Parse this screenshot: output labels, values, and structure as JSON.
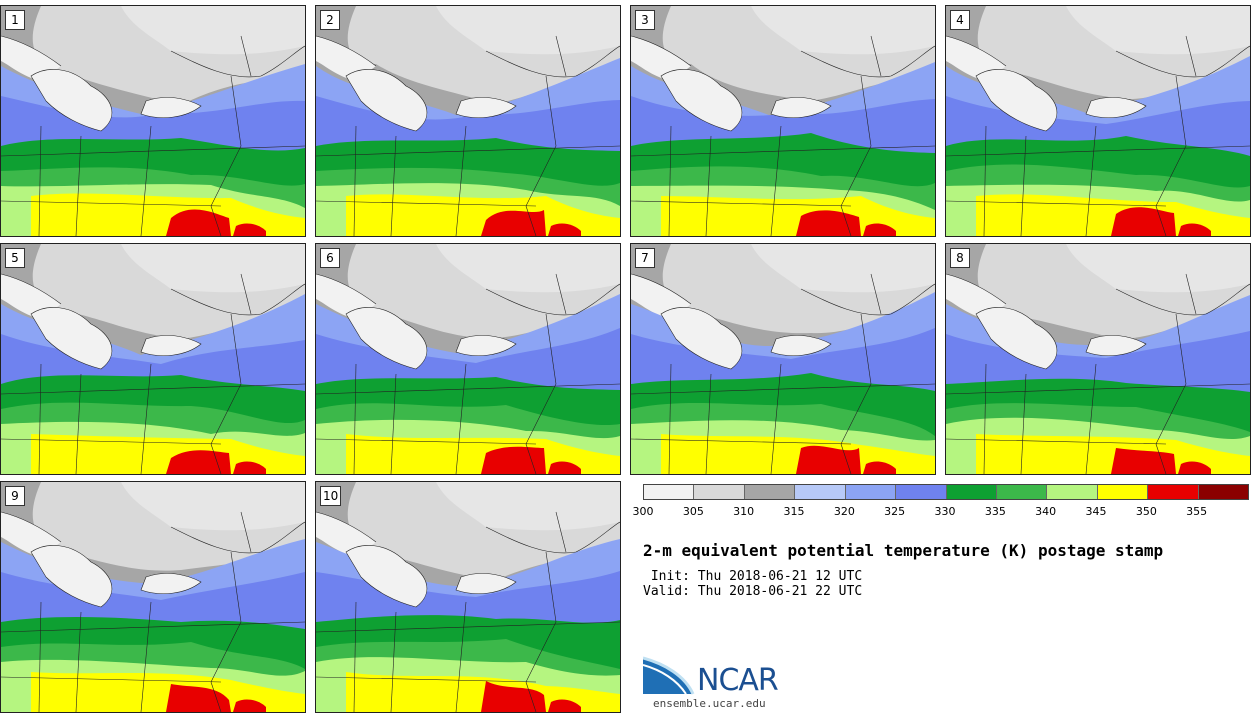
{
  "panels": [
    {
      "label": "1"
    },
    {
      "label": "2"
    },
    {
      "label": "3"
    },
    {
      "label": "4"
    },
    {
      "label": "5"
    },
    {
      "label": "6"
    },
    {
      "label": "7"
    },
    {
      "label": "8"
    },
    {
      "label": "9"
    },
    {
      "label": "10"
    }
  ],
  "colorbar": {
    "colors": [
      "#f2f2f2",
      "#d9d9d9",
      "#a6a6a6",
      "#b7c9f7",
      "#8ca4f4",
      "#6f82ef",
      "#0ea032",
      "#3cb84a",
      "#b5f580",
      "#ffff00",
      "#e80000",
      "#8b0000"
    ],
    "ticks": [
      "300",
      "305",
      "310",
      "315",
      "320",
      "325",
      "330",
      "335",
      "340",
      "345",
      "350",
      "355"
    ]
  },
  "title": "2-m equivalent potential temperature (K) postage stamp",
  "init": " Init: Thu 2018-06-21 12 UTC",
  "valid": "Valid: Thu 2018-06-21 22 UTC",
  "logo": {
    "text": "NCAR",
    "url": "ensemble.ucar.edu"
  }
}
